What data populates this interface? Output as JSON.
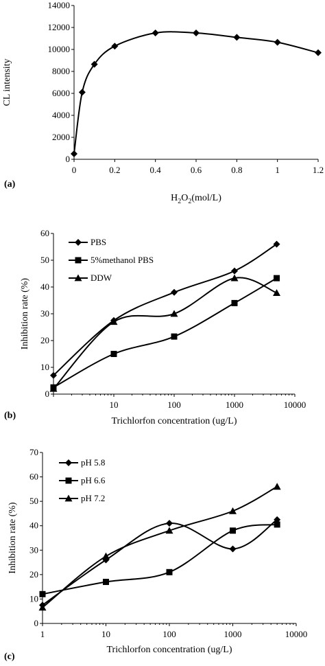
{
  "chart_data": [
    {
      "panel": "(a)",
      "type": "line",
      "xlabel": "H2O2(mol/L)",
      "xlabel_main": "H",
      "xlabel_sub1": "2",
      "xlabel_mid": "O",
      "xlabel_sub2": "2",
      "xlabel_rest": "(mol/L)",
      "ylabel": "CL intensity",
      "xlim": [
        0,
        1.2
      ],
      "ylim": [
        0,
        14000
      ],
      "xticks": [
        "0",
        "0.2",
        "0.4",
        "0.6",
        "0.8",
        "1",
        "1.2"
      ],
      "yticks": [
        "0",
        "2000",
        "4000",
        "6000",
        "8000",
        "10000",
        "12000",
        "14000"
      ],
      "x_scale": "linear",
      "legend": null,
      "series": [
        {
          "marker": "diamond",
          "x": [
            0,
            0.04,
            0.1,
            0.2,
            0.4,
            0.6,
            0.8,
            1.0,
            1.2
          ],
          "y": [
            500,
            6100,
            8650,
            10300,
            11500,
            11500,
            11100,
            10650,
            9700
          ]
        }
      ]
    },
    {
      "panel": "(b)",
      "type": "line",
      "xlabel": "Trichlorfon concentration (ug/L)",
      "ylabel": "Inhibition rate (%)",
      "xlim": [
        1,
        10000
      ],
      "ylim": [
        0,
        60
      ],
      "x_scale": "log",
      "xticks": [
        "1",
        "10",
        "100",
        "1000",
        "10000"
      ],
      "xtick_values": [
        1,
        10,
        100,
        1000,
        10000
      ],
      "xtick_labels_shown": [
        "10",
        "100",
        "1000",
        "10000"
      ],
      "yticks": [
        "0",
        "10",
        "20",
        "30",
        "40",
        "50",
        "60"
      ],
      "legend": "top-left",
      "series": [
        {
          "name": "PBS",
          "marker": "diamond",
          "x": [
            1,
            10,
            100,
            1000,
            5000
          ],
          "y": [
            7,
            27.5,
            38,
            46,
            56
          ]
        },
        {
          "name": "5%methanol PBS",
          "marker": "square",
          "x": [
            1,
            10,
            100,
            1000,
            5000
          ],
          "y": [
            2.5,
            15,
            21.5,
            34,
            43.3
          ]
        },
        {
          "name": "DDW",
          "marker": "triangle",
          "x": [
            1,
            10,
            100,
            1000,
            5000
          ],
          "y": [
            2,
            27,
            30,
            43.3,
            37.8
          ]
        }
      ]
    },
    {
      "panel": "(c)",
      "type": "line",
      "xlabel": "Trichlorfon concentration (ug/L)",
      "ylabel": "Inhibition rate (%)",
      "xlim": [
        1,
        10000
      ],
      "ylim": [
        0,
        70
      ],
      "x_scale": "log",
      "xticks": [
        "1",
        "10",
        "100",
        "1000",
        "10000"
      ],
      "xtick_values": [
        1,
        10,
        100,
        1000,
        10000
      ],
      "yticks": [
        "0",
        "10",
        "20",
        "30",
        "40",
        "50",
        "60",
        "70"
      ],
      "legend": "top-left",
      "series": [
        {
          "name": "pH 5.8",
          "marker": "diamond",
          "x": [
            1,
            10,
            100,
            1000,
            5000
          ],
          "y": [
            7.5,
            26,
            41,
            30.5,
            42.5
          ]
        },
        {
          "name": "pH 6.6",
          "marker": "square",
          "x": [
            1,
            10,
            100,
            1000,
            5000
          ],
          "y": [
            12,
            17,
            21,
            38,
            40.5
          ]
        },
        {
          "name": "pH 7.2",
          "marker": "triangle",
          "x": [
            1,
            10,
            100,
            1000,
            5000
          ],
          "y": [
            6.5,
            27.5,
            38,
            46,
            56
          ]
        }
      ]
    }
  ]
}
